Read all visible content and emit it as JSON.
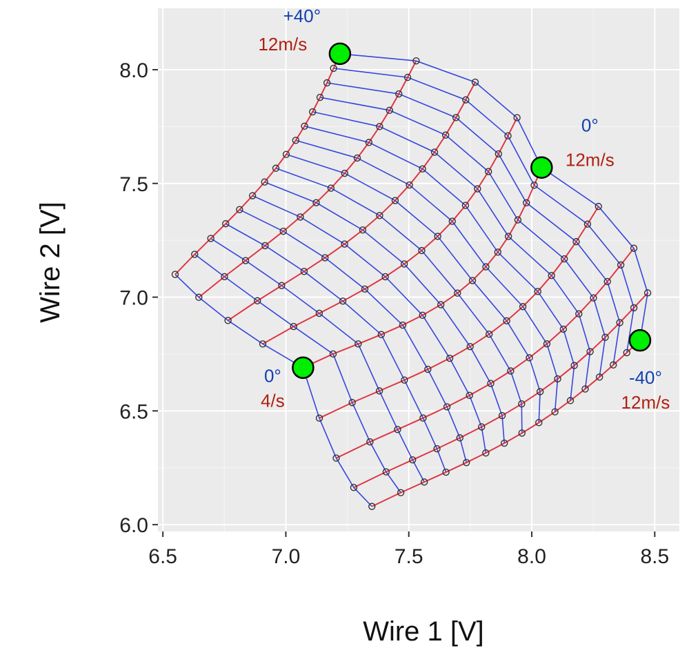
{
  "chart_data": {
    "type": "scatter",
    "title": "",
    "xlabel": "Wire 1 [V]",
    "ylabel": "Wire 2 [V]",
    "xlim": [
      6.48,
      8.6
    ],
    "ylim": [
      5.97,
      8.27
    ],
    "xticks": [
      6.5,
      7.0,
      7.5,
      8.0,
      8.5
    ],
    "yticks": [
      6.0,
      6.5,
      7.0,
      7.5,
      8.0
    ],
    "xtick_labels": [
      "6.5",
      "7.0",
      "7.5",
      "8.0",
      "8.5"
    ],
    "ytick_labels": [
      "6.0",
      "6.5",
      "7.0",
      "7.5",
      "8.0"
    ],
    "grid": true,
    "colors": {
      "panel": "#ebebeb",
      "grid_major": "#ffffff",
      "constant_angle_lines": "#2233dd",
      "constant_speed_lines": "#dd2233",
      "calibration_points": "#333333",
      "highlight_points": "#00ee00",
      "angle_text": "#1040b0",
      "speed_text": "#b02010"
    },
    "highlighted_points": [
      {
        "x": 7.22,
        "y": 8.07,
        "angle": "+40°",
        "speed": "12m/s"
      },
      {
        "x": 8.04,
        "y": 7.57,
        "angle": "0°",
        "speed": "12m/s"
      },
      {
        "x": 7.07,
        "y": 6.69,
        "angle": "0°",
        "speed": "4/s"
      },
      {
        "x": 8.44,
        "y": 6.81,
        "angle": "-40°",
        "speed": "12m/s"
      }
    ],
    "grid_model": {
      "angles_deg": [
        -40,
        -30,
        -20,
        -10,
        0,
        10,
        20,
        30,
        40
      ],
      "speed_levels": 16,
      "speed_range_mps": [
        4,
        12
      ],
      "anchor_zero_deg_low_speed": [
        7.07,
        6.69
      ],
      "anchor_zero_deg_high_speed": [
        8.04,
        7.57
      ],
      "anchor_plus40_high_speed": [
        7.22,
        8.07
      ],
      "anchor_minus40_high_speed": [
        8.44,
        6.81
      ],
      "convergence_point": [
        7.35,
        6.08
      ]
    }
  }
}
